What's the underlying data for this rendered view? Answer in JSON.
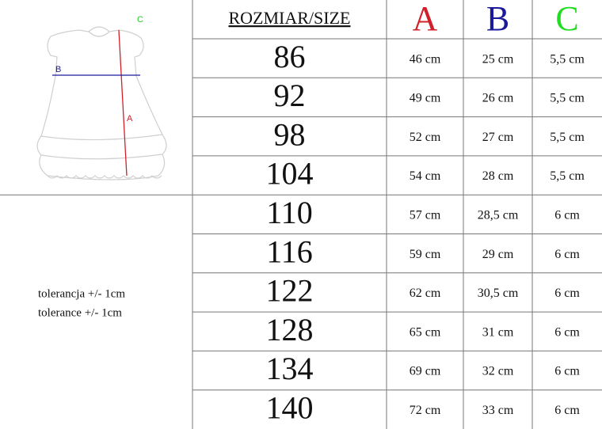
{
  "diagram": {
    "labels": [
      "A",
      "B",
      "C"
    ]
  },
  "table": {
    "header": [
      "ROZMIAR/SIZE",
      "A",
      "B",
      "C"
    ],
    "rows": [
      [
        "86",
        "46 cm",
        "25 cm",
        "5,5 cm"
      ],
      [
        "92",
        "49 cm",
        "26 cm",
        "5,5 cm"
      ],
      [
        "98",
        "52 cm",
        "27 cm",
        "5,5 cm"
      ],
      [
        "104",
        "54 cm",
        "28 cm",
        "5,5 cm"
      ],
      [
        "110",
        "57 cm",
        "28,5 cm",
        "6 cm"
      ],
      [
        "116",
        "59 cm",
        "29 cm",
        "6 cm"
      ],
      [
        "122",
        "62 cm",
        "30,5 cm",
        "6 cm"
      ],
      [
        "128",
        "65 cm",
        "31 cm",
        "6 cm"
      ],
      [
        "134",
        "69 cm",
        "32 cm",
        "6 cm"
      ],
      [
        "140",
        "72 cm",
        "33 cm",
        "6 cm"
      ]
    ]
  },
  "tolerance": [
    "tolerancja +/- 1cm",
    "tolerance +/- 1cm"
  ]
}
